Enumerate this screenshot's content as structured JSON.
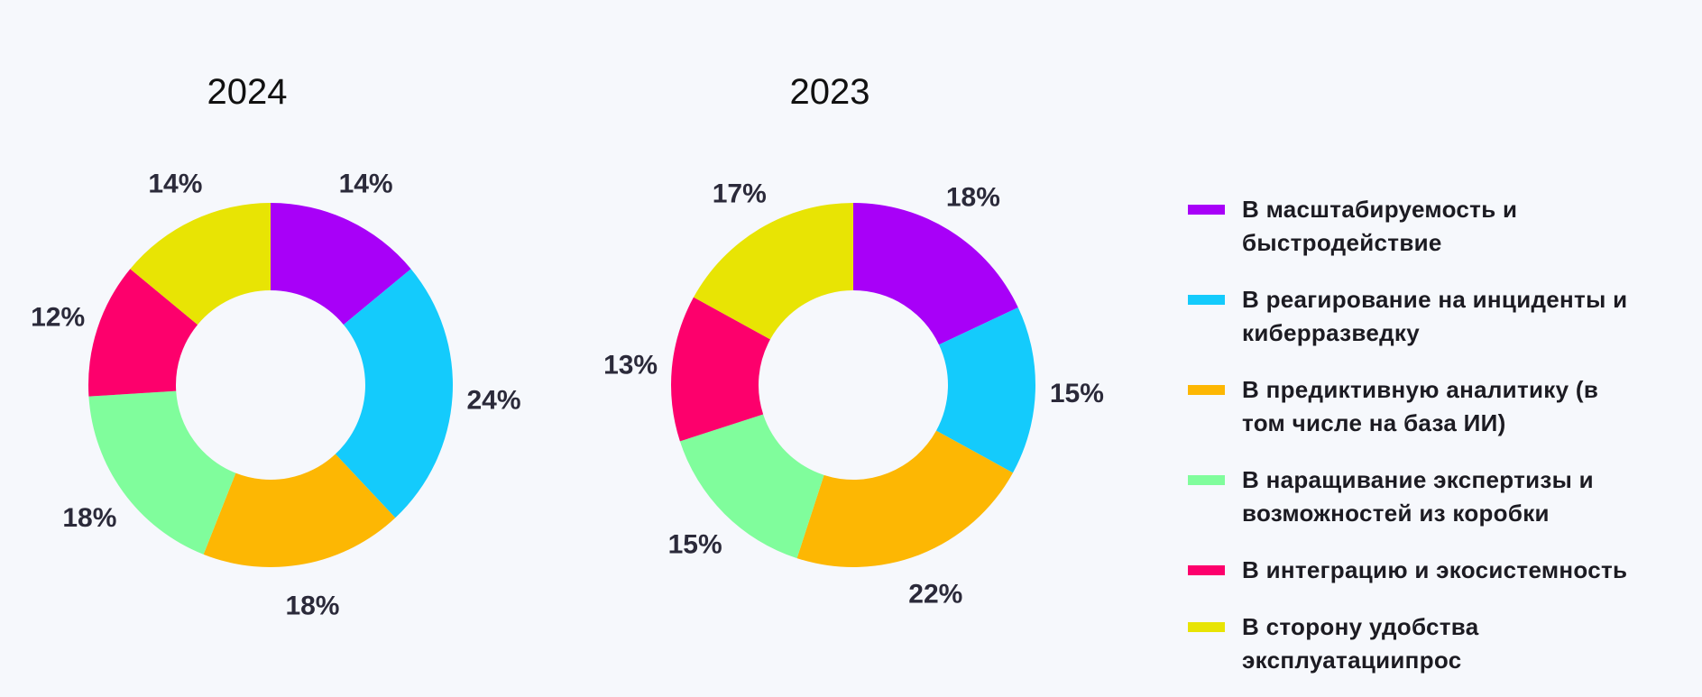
{
  "chart_data": [
    {
      "type": "pie",
      "title": "2024",
      "categories": [
        "В масштабируемость и быстродействие",
        "В реагирование на инциденты и киберразведку",
        "В предиктивную аналитику (в том числе на база ИИ)",
        "В наращивание экспертизы и возможностей из коробки",
        "В интеграцию и экосистемность",
        "В сторону удобства эксплуатациипрос"
      ],
      "values": [
        14,
        24,
        18,
        18,
        12,
        14
      ],
      "labels": [
        "14%",
        "24%",
        "18%",
        "18%",
        "12%",
        "14%"
      ]
    },
    {
      "type": "pie",
      "title": "2023",
      "categories": [
        "В масштабируемость и быстродействие",
        "В реагирование на инциденты и киберразведку",
        "В предиктивную аналитику (в том числе на база ИИ)",
        "В наращивание экспертизы и возможностей из коробки",
        "В интеграцию и экосистемность",
        "В сторону удобства эксплуатациипрос"
      ],
      "values": [
        18,
        15,
        22,
        15,
        13,
        17
      ],
      "labels": [
        "18%",
        "15%",
        "22%",
        "15%",
        "13%",
        "17%"
      ]
    }
  ],
  "legend": {
    "placement": "right",
    "items": [
      {
        "label": "В масштабируемость и быстродействие",
        "color": "#a800f8"
      },
      {
        "label": "В реагирование на инциденты и киберразведку",
        "color": "#14cbfc"
      },
      {
        "label": "В предиктивную аналитику (в том числе на база ИИ)",
        "color": "#fdb703"
      },
      {
        "label": "В наращивание экспертизы и возможностей из коробки",
        "color": "#80fd9c"
      },
      {
        "label": "В интеграцию и экосистемность",
        "color": "#fd006c"
      },
      {
        "label": "В сторону удобства эксплуатациипрос",
        "color": "#e8e404"
      }
    ]
  }
}
